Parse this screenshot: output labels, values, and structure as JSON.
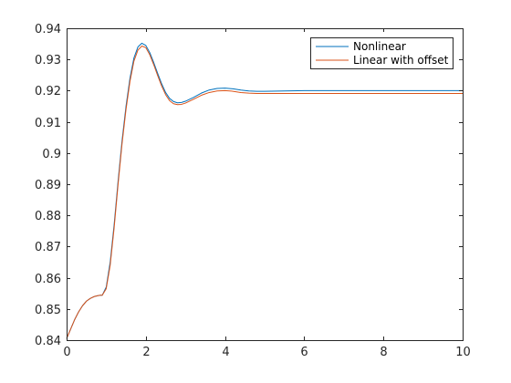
{
  "chart_data": {
    "type": "line",
    "title": "",
    "xlabel": "",
    "ylabel": "",
    "xlim": [
      0,
      10
    ],
    "ylim": [
      0.84,
      0.94
    ],
    "x_ticks": [
      "0",
      "2",
      "4",
      "6",
      "8",
      "10"
    ],
    "y_ticks": [
      "0.84",
      "0.85",
      "0.86",
      "0.87",
      "0.88",
      "0.89",
      "0.9",
      "0.91",
      "0.92",
      "0.93",
      "0.94"
    ],
    "grid": false,
    "legend_position": "top-right",
    "series": [
      {
        "name": "Nonlinear",
        "color": "#0072BD",
        "points": [
          [
            0,
            0.8405
          ],
          [
            0.1,
            0.8435
          ],
          [
            0.2,
            0.8465
          ],
          [
            0.3,
            0.849
          ],
          [
            0.4,
            0.851
          ],
          [
            0.5,
            0.8525
          ],
          [
            0.6,
            0.8534
          ],
          [
            0.7,
            0.854
          ],
          [
            0.8,
            0.8543
          ],
          [
            0.85,
            0.8544
          ],
          [
            0.9,
            0.8544
          ],
          [
            1.0,
            0.857
          ],
          [
            1.1,
            0.865
          ],
          [
            1.2,
            0.877
          ],
          [
            1.3,
            0.891
          ],
          [
            1.4,
            0.904
          ],
          [
            1.5,
            0.915
          ],
          [
            1.6,
            0.924
          ],
          [
            1.7,
            0.9305
          ],
          [
            1.8,
            0.934
          ],
          [
            1.9,
            0.9352
          ],
          [
            2.0,
            0.9345
          ],
          [
            2.1,
            0.9322
          ],
          [
            2.2,
            0.929
          ],
          [
            2.3,
            0.9255
          ],
          [
            2.4,
            0.9222
          ],
          [
            2.5,
            0.9194
          ],
          [
            2.6,
            0.9175
          ],
          [
            2.7,
            0.9165
          ],
          [
            2.8,
            0.9161
          ],
          [
            2.9,
            0.9162
          ],
          [
            3.0,
            0.9166
          ],
          [
            3.2,
            0.9178
          ],
          [
            3.4,
            0.9192
          ],
          [
            3.6,
            0.9202
          ],
          [
            3.8,
            0.9207
          ],
          [
            4.0,
            0.9208
          ],
          [
            4.2,
            0.9206
          ],
          [
            4.4,
            0.9202
          ],
          [
            4.6,
            0.9199
          ],
          [
            4.8,
            0.9198
          ],
          [
            5.0,
            0.9198
          ],
          [
            5.5,
            0.9199
          ],
          [
            6.0,
            0.92
          ],
          [
            7.0,
            0.92
          ],
          [
            8.0,
            0.92
          ],
          [
            9.0,
            0.92
          ],
          [
            10.0,
            0.92
          ]
        ]
      },
      {
        "name": "Linear with offset",
        "color": "#D95319",
        "points": [
          [
            0,
            0.8405
          ],
          [
            0.1,
            0.8435
          ],
          [
            0.2,
            0.8465
          ],
          [
            0.3,
            0.849
          ],
          [
            0.4,
            0.851
          ],
          [
            0.5,
            0.8525
          ],
          [
            0.6,
            0.8534
          ],
          [
            0.7,
            0.854
          ],
          [
            0.8,
            0.8543
          ],
          [
            0.85,
            0.8544
          ],
          [
            0.9,
            0.8544
          ],
          [
            1.0,
            0.8565
          ],
          [
            1.1,
            0.864
          ],
          [
            1.2,
            0.876
          ],
          [
            1.3,
            0.89
          ],
          [
            1.4,
            0.903
          ],
          [
            1.5,
            0.914
          ],
          [
            1.6,
            0.923
          ],
          [
            1.7,
            0.9295
          ],
          [
            1.8,
            0.933
          ],
          [
            1.9,
            0.9343
          ],
          [
            2.0,
            0.9338
          ],
          [
            2.1,
            0.9315
          ],
          [
            2.2,
            0.9283
          ],
          [
            2.3,
            0.9248
          ],
          [
            2.4,
            0.9215
          ],
          [
            2.5,
            0.9187
          ],
          [
            2.6,
            0.9168
          ],
          [
            2.7,
            0.9158
          ],
          [
            2.8,
            0.9155
          ],
          [
            2.9,
            0.9156
          ],
          [
            3.0,
            0.916
          ],
          [
            3.2,
            0.9172
          ],
          [
            3.4,
            0.9185
          ],
          [
            3.6,
            0.9194
          ],
          [
            3.8,
            0.9199
          ],
          [
            4.0,
            0.92
          ],
          [
            4.2,
            0.9198
          ],
          [
            4.4,
            0.9194
          ],
          [
            4.6,
            0.9192
          ],
          [
            4.8,
            0.9191
          ],
          [
            5.0,
            0.9191
          ],
          [
            5.5,
            0.9191
          ],
          [
            6.0,
            0.9191
          ],
          [
            7.0,
            0.9191
          ],
          [
            8.0,
            0.9191
          ],
          [
            9.0,
            0.9191
          ],
          [
            10.0,
            0.9191
          ]
        ]
      }
    ]
  }
}
